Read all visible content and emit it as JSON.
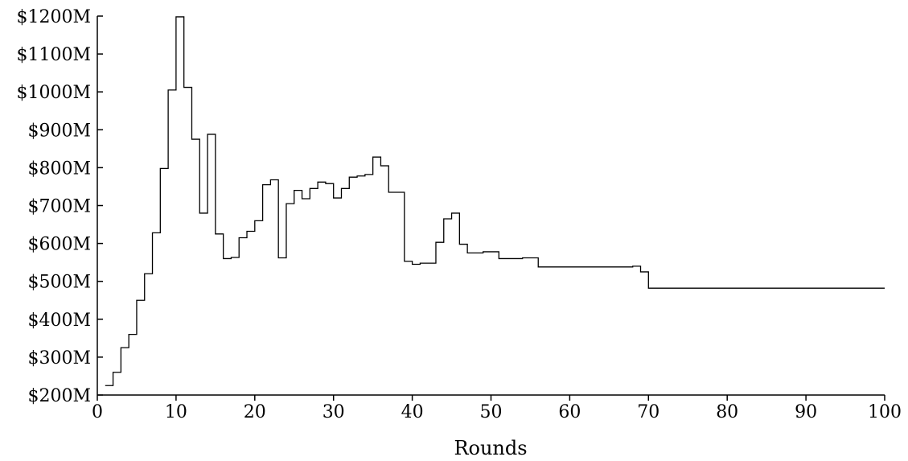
{
  "chart_data": {
    "type": "line",
    "title": "",
    "xlabel": "Rounds",
    "ylabel": "",
    "xlim": [
      0,
      100
    ],
    "ylim": [
      200,
      1200
    ],
    "xticks": [
      0,
      10,
      20,
      30,
      40,
      50,
      60,
      70,
      80,
      90,
      100
    ],
    "xtick_labels": [
      "0",
      "10",
      "20",
      "30",
      "40",
      "50",
      "60",
      "70",
      "80",
      "90",
      "100"
    ],
    "yticks": [
      200,
      300,
      400,
      500,
      600,
      700,
      800,
      900,
      1000,
      1100,
      1200
    ],
    "ytick_labels": [
      "$200M",
      "$300M",
      "$400M",
      "$500M",
      "$600M",
      "$700M",
      "$800M",
      "$900M",
      "$1000M",
      "$1100M",
      "$1200M"
    ],
    "grid": false,
    "step": true,
    "series": [
      {
        "color": "#000000",
        "x": [
          1,
          2,
          3,
          4,
          5,
          6,
          7,
          8,
          9,
          10,
          11,
          12,
          13,
          14,
          15,
          16,
          17,
          18,
          19,
          20,
          21,
          22,
          23,
          24,
          25,
          26,
          27,
          28,
          29,
          30,
          31,
          32,
          33,
          34,
          35,
          36,
          37,
          38,
          39,
          40,
          41,
          42,
          43,
          44,
          45,
          46,
          47,
          48,
          49,
          50,
          51,
          52,
          53,
          54,
          55,
          56,
          57,
          58,
          59,
          60,
          61,
          62,
          63,
          64,
          65,
          66,
          67,
          68,
          69,
          70,
          71,
          72,
          73,
          74,
          75,
          76,
          77,
          78,
          79,
          80,
          81,
          82,
          83,
          84,
          85,
          86,
          87,
          88,
          89,
          90,
          91,
          92,
          93,
          94,
          95,
          96,
          97,
          98,
          99,
          100
        ],
        "y": [
          225,
          260,
          325,
          360,
          450,
          520,
          628,
          798,
          1005,
          1198,
          1012,
          875,
          680,
          888,
          625,
          560,
          563,
          615,
          632,
          660,
          755,
          768,
          562,
          705,
          740,
          718,
          745,
          762,
          758,
          720,
          745,
          775,
          778,
          782,
          828,
          805,
          735,
          735,
          553,
          545,
          548,
          548,
          603,
          665,
          680,
          598,
          575,
          575,
          578,
          578,
          560,
          560,
          560,
          562,
          562,
          538,
          538,
          538,
          538,
          538,
          538,
          538,
          538,
          538,
          538,
          538,
          538,
          540,
          525,
          482,
          482,
          482,
          482,
          482,
          482,
          482,
          482,
          482,
          482,
          482,
          482,
          482,
          482,
          482,
          482,
          482,
          482,
          482,
          482,
          482,
          482,
          482,
          482,
          482,
          482,
          482,
          482,
          482,
          482,
          482
        ]
      }
    ]
  }
}
